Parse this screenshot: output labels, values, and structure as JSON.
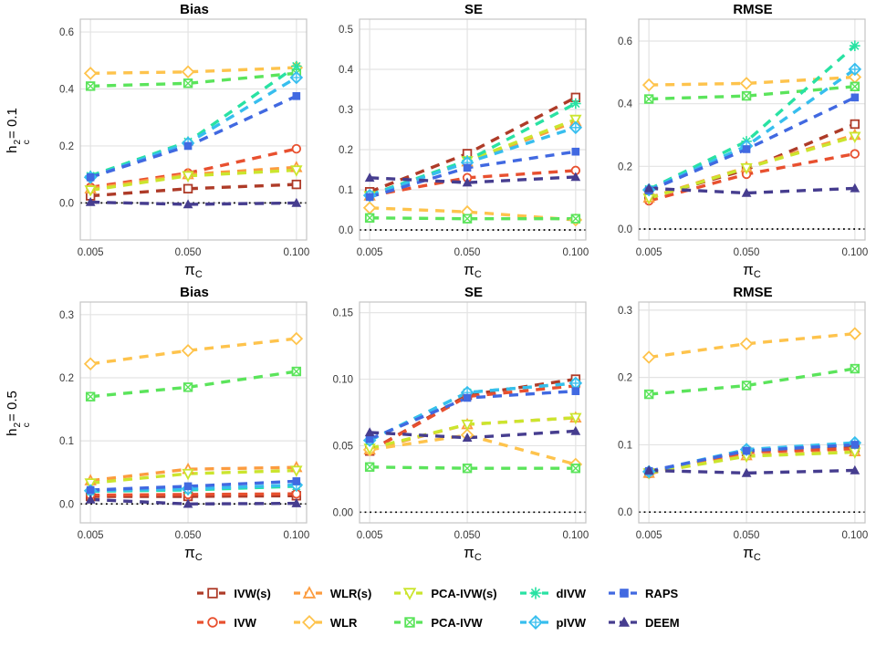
{
  "figure": {
    "row_labels": [
      {
        "base": "h",
        "sup": "2",
        "sub": "c",
        "eq": "= 0.1"
      },
      {
        "base": "h",
        "sup": "2",
        "sub": "c",
        "eq": "= 0.5"
      }
    ]
  },
  "chart_data": {
    "type": "line",
    "x": [
      0.005,
      0.05,
      0.1
    ],
    "x_tick_labels": [
      "0.005",
      "0.050",
      "0.100"
    ],
    "x_domain": [
      0.0003,
      0.1047
    ],
    "xlabel": {
      "base": "π",
      "sub": "C"
    },
    "line_style": "dashed",
    "grid": "major-only",
    "zero_reference_line": "black dotted at y=0",
    "colors": {
      "gridline": "#E3E3E3",
      "panel_border": "#C4C4C4",
      "tick_text": "#383838",
      "background": "#FFFFFF"
    },
    "series": [
      {
        "name": "IVW(s)",
        "color": "#AE3B28",
        "marker": "square"
      },
      {
        "name": "IVW",
        "color": "#E8502F",
        "marker": "circle"
      },
      {
        "name": "WLR(s)",
        "color": "#FC9C3F",
        "marker": "triangle"
      },
      {
        "name": "WLR",
        "color": "#FEC34C",
        "marker": "diamond"
      },
      {
        "name": "PCA-IVW(s)",
        "color": "#CBE52E",
        "marker": "triangle-down"
      },
      {
        "name": "PCA-IVW",
        "color": "#5BE45B",
        "marker": "square-x"
      },
      {
        "name": "dIVW",
        "color": "#29E2A3",
        "marker": "asterisk"
      },
      {
        "name": "pIVW",
        "color": "#37BEEE",
        "marker": "diamond-plus"
      },
      {
        "name": "RAPS",
        "color": "#4169E1",
        "marker": "square-solid"
      },
      {
        "name": "DEEM",
        "color": "#463D8F",
        "marker": "triangle-solid"
      }
    ],
    "legend_order": [
      0,
      2,
      4,
      6,
      8,
      1,
      3,
      5,
      7,
      9
    ],
    "panels": [
      {
        "title": "Bias",
        "row": 0,
        "col": 0,
        "ylim": [
          -0.13,
          0.645
        ],
        "yticks": [
          0.0,
          0.2,
          0.4,
          0.6
        ],
        "ytick_labels": [
          "0.0",
          "0.2",
          "0.4",
          "0.6"
        ],
        "values": [
          [
            0.025,
            0.05,
            0.065
          ],
          [
            0.055,
            0.105,
            0.19
          ],
          [
            0.05,
            0.1,
            0.125
          ],
          [
            0.455,
            0.46,
            0.475
          ],
          [
            0.045,
            0.095,
            0.115
          ],
          [
            0.41,
            0.42,
            0.455
          ],
          [
            0.095,
            0.215,
            0.48
          ],
          [
            0.09,
            0.21,
            0.44
          ],
          [
            0.09,
            0.2,
            0.375
          ],
          [
            0.003,
            -0.005,
            0.0
          ]
        ]
      },
      {
        "title": "SE",
        "row": 0,
        "col": 1,
        "ylim": [
          -0.025,
          0.525
        ],
        "yticks": [
          0.0,
          0.1,
          0.2,
          0.3,
          0.4,
          0.5
        ],
        "ytick_labels": [
          "0.0",
          "0.1",
          "0.2",
          "0.3",
          "0.4",
          "0.5"
        ],
        "values": [
          [
            0.095,
            0.19,
            0.33
          ],
          [
            0.085,
            0.13,
            0.148
          ],
          [
            0.085,
            0.17,
            0.27
          ],
          [
            0.055,
            0.045,
            0.025
          ],
          [
            0.085,
            0.172,
            0.275
          ],
          [
            0.03,
            0.028,
            0.028
          ],
          [
            0.087,
            0.173,
            0.315
          ],
          [
            0.086,
            0.168,
            0.255
          ],
          [
            0.082,
            0.155,
            0.195
          ],
          [
            0.13,
            0.118,
            0.132
          ]
        ]
      },
      {
        "title": "RMSE",
        "row": 0,
        "col": 2,
        "ylim": [
          -0.035,
          0.67
        ],
        "yticks": [
          0.0,
          0.2,
          0.4,
          0.6
        ],
        "ytick_labels": [
          "0.0",
          "0.2",
          "0.4",
          "0.6"
        ],
        "values": [
          [
            0.1,
            0.19,
            0.335
          ],
          [
            0.09,
            0.175,
            0.24
          ],
          [
            0.1,
            0.197,
            0.3
          ],
          [
            0.46,
            0.465,
            0.485
          ],
          [
            0.098,
            0.195,
            0.295
          ],
          [
            0.415,
            0.425,
            0.455
          ],
          [
            0.127,
            0.28,
            0.585
          ],
          [
            0.125,
            0.265,
            0.51
          ],
          [
            0.123,
            0.255,
            0.42
          ],
          [
            0.13,
            0.115,
            0.13
          ]
        ]
      },
      {
        "title": "Bias",
        "row": 1,
        "col": 0,
        "ylim": [
          -0.03,
          0.32
        ],
        "yticks": [
          0.0,
          0.1,
          0.2,
          0.3
        ],
        "ytick_labels": [
          "0.0",
          "0.1",
          "0.2",
          "0.3"
        ],
        "values": [
          [
            0.012,
            0.012,
            0.013
          ],
          [
            0.014,
            0.015,
            0.016
          ],
          [
            0.037,
            0.055,
            0.058
          ],
          [
            0.222,
            0.243,
            0.262
          ],
          [
            0.033,
            0.048,
            0.053
          ],
          [
            0.17,
            0.185,
            0.21
          ],
          [
            0.02,
            0.022,
            0.028
          ],
          [
            0.021,
            0.024,
            0.03
          ],
          [
            0.022,
            0.028,
            0.036
          ],
          [
            0.007,
            0.0,
            0.001
          ]
        ]
      },
      {
        "title": "SE",
        "row": 1,
        "col": 1,
        "ylim": [
          -0.008,
          0.158
        ],
        "yticks": [
          0.0,
          0.05,
          0.1,
          0.15
        ],
        "ytick_labels": [
          "0.00",
          "0.05",
          "0.10",
          "0.15"
        ],
        "values": [
          [
            0.046,
            0.088,
            0.1
          ],
          [
            0.046,
            0.087,
            0.095
          ],
          [
            0.047,
            0.066,
            0.071
          ],
          [
            0.047,
            0.058,
            0.036
          ],
          [
            0.048,
            0.066,
            0.071
          ],
          [
            0.034,
            0.033,
            0.033
          ],
          [
            0.054,
            0.09,
            0.097
          ],
          [
            0.054,
            0.09,
            0.097
          ],
          [
            0.055,
            0.086,
            0.091
          ],
          [
            0.06,
            0.056,
            0.061
          ]
        ]
      },
      {
        "title": "RMSE",
        "row": 1,
        "col": 2,
        "ylim": [
          -0.016,
          0.312
        ],
        "yticks": [
          0.0,
          0.1,
          0.2,
          0.3
        ],
        "ytick_labels": [
          "0.0",
          "0.1",
          "0.2",
          "0.3"
        ],
        "values": [
          [
            0.058,
            0.09,
            0.096
          ],
          [
            0.057,
            0.089,
            0.094
          ],
          [
            0.058,
            0.084,
            0.09
          ],
          [
            0.23,
            0.25,
            0.265
          ],
          [
            0.058,
            0.083,
            0.089
          ],
          [
            0.175,
            0.188,
            0.213
          ],
          [
            0.06,
            0.092,
            0.101
          ],
          [
            0.06,
            0.093,
            0.103
          ],
          [
            0.061,
            0.091,
            0.1
          ],
          [
            0.062,
            0.058,
            0.062
          ]
        ]
      }
    ]
  }
}
